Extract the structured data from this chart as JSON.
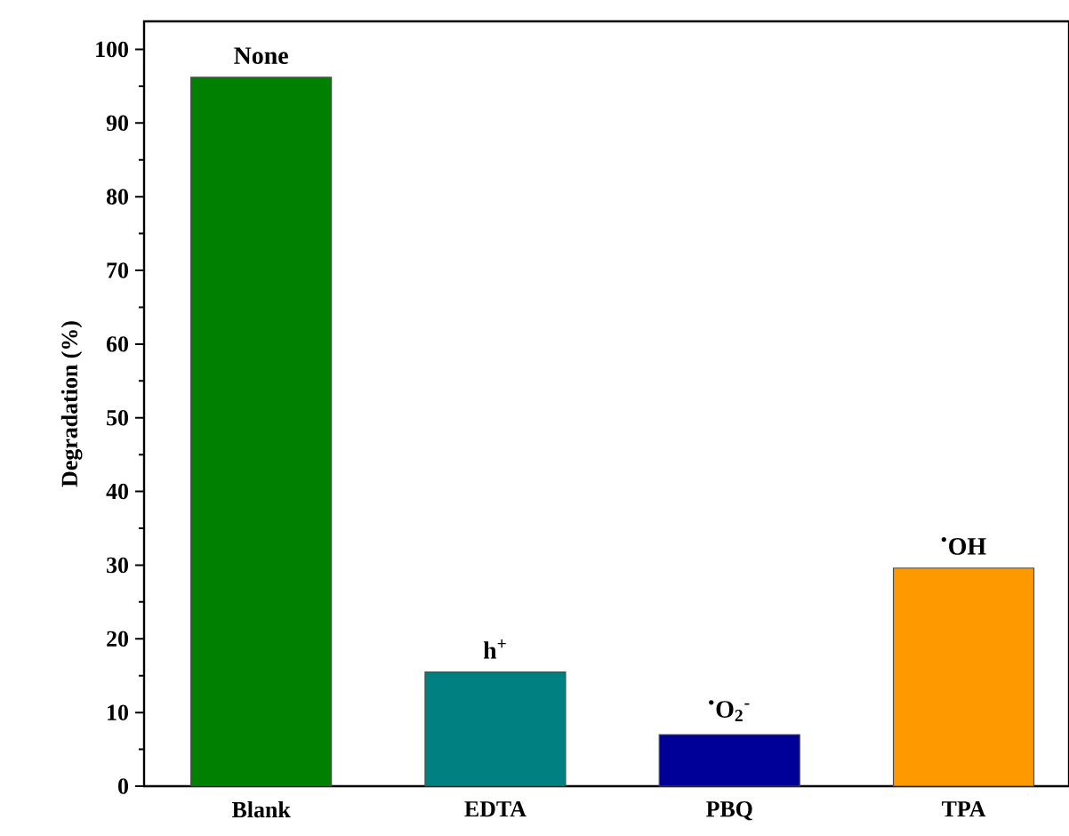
{
  "chart_data": {
    "type": "bar",
    "ylabel": "Degradation (%)",
    "categories": [
      "Blank",
      "EDTA",
      "PBQ",
      "TPA"
    ],
    "values": [
      96.2,
      15.5,
      7.0,
      29.6
    ],
    "colors": [
      "#008000",
      "#008080",
      "#000099",
      "#ff9900"
    ],
    "ylim": [
      0,
      103.8
    ],
    "yticks": [
      0,
      10,
      20,
      30,
      40,
      50,
      60,
      70,
      80,
      90,
      100
    ],
    "annotations": [
      {
        "text": "None",
        "x": "Blank",
        "y": 96.2
      },
      {
        "text": "h$^{+}$",
        "x": "EDTA",
        "y": 15.5
      },
      {
        "text": "$^{•}$O$_{2}$$^{-}$",
        "x": "PBQ",
        "y": 7.0
      },
      {
        "text": "$^{•}$OH",
        "x": "TPA",
        "y": 29.6
      }
    ]
  }
}
